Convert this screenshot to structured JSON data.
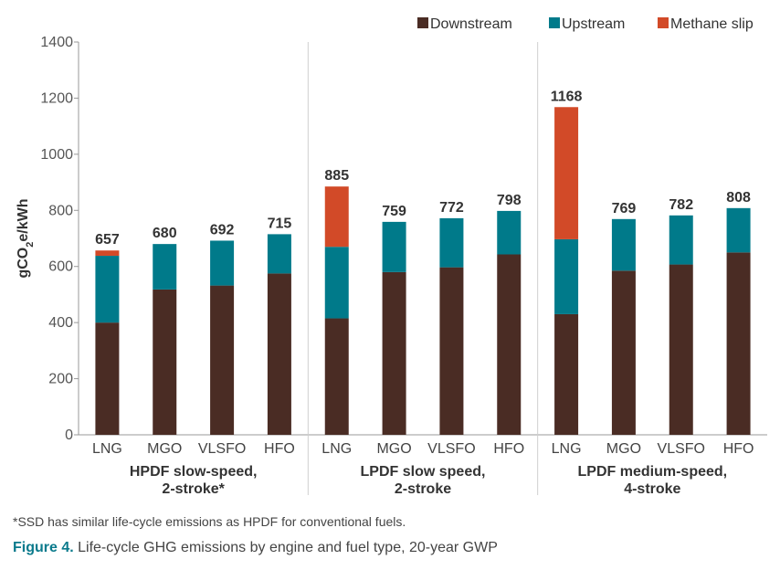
{
  "chart_data": {
    "type": "bar",
    "stacked": true,
    "ylabel": "gCO2e/kWh",
    "ylim": [
      0,
      1400
    ],
    "yticks": [
      0,
      200,
      400,
      600,
      800,
      1000,
      1200,
      1400
    ],
    "grid": false,
    "legend_position": "top-right",
    "series": [
      {
        "name": "Downstream",
        "color": "#4a2c24"
      },
      {
        "name": "Upstream",
        "color": "#007a8a"
      },
      {
        "name": "Methane slip",
        "color": "#d24a28"
      }
    ],
    "groups": [
      {
        "label_line1": "HPDF slow-speed,",
        "label_line2": "2-stroke*",
        "bars": [
          {
            "category": "LNG",
            "values": [
              400,
              238,
              19
            ],
            "total": "657"
          },
          {
            "category": "MGO",
            "values": [
              518,
              162,
              0
            ],
            "total": "680"
          },
          {
            "category": "VLSFO",
            "values": [
              532,
              160,
              0
            ],
            "total": "692"
          },
          {
            "category": "HFO",
            "values": [
              575,
              140,
              0
            ],
            "total": "715"
          }
        ]
      },
      {
        "label_line1": "LPDF slow speed,",
        "label_line2": "2-stroke",
        "bars": [
          {
            "category": "LNG",
            "values": [
              415,
              255,
              215
            ],
            "total": "885"
          },
          {
            "category": "MGO",
            "values": [
              580,
              179,
              0
            ],
            "total": "759"
          },
          {
            "category": "VLSFO",
            "values": [
              597,
              175,
              0
            ],
            "total": "772"
          },
          {
            "category": "HFO",
            "values": [
              643,
              155,
              0
            ],
            "total": "798"
          }
        ]
      },
      {
        "label_line1": "LPDF medium-speed,",
        "label_line2": "4-stroke",
        "bars": [
          {
            "category": "LNG",
            "values": [
              430,
              267,
              471
            ],
            "total": "1168"
          },
          {
            "category": "MGO",
            "values": [
              585,
              184,
              0
            ],
            "total": "769"
          },
          {
            "category": "VLSFO",
            "values": [
              607,
              175,
              0
            ],
            "total": "782"
          },
          {
            "category": "HFO",
            "values": [
              650,
              158,
              0
            ],
            "total": "808"
          }
        ]
      }
    ]
  },
  "footnote": "*SSD has similar life-cycle emissions as HPDF for conventional fuels.",
  "caption": {
    "label": "Figure 4.",
    "text": " Life-cycle GHG emissions by engine and fuel type, 20-year GWP"
  }
}
